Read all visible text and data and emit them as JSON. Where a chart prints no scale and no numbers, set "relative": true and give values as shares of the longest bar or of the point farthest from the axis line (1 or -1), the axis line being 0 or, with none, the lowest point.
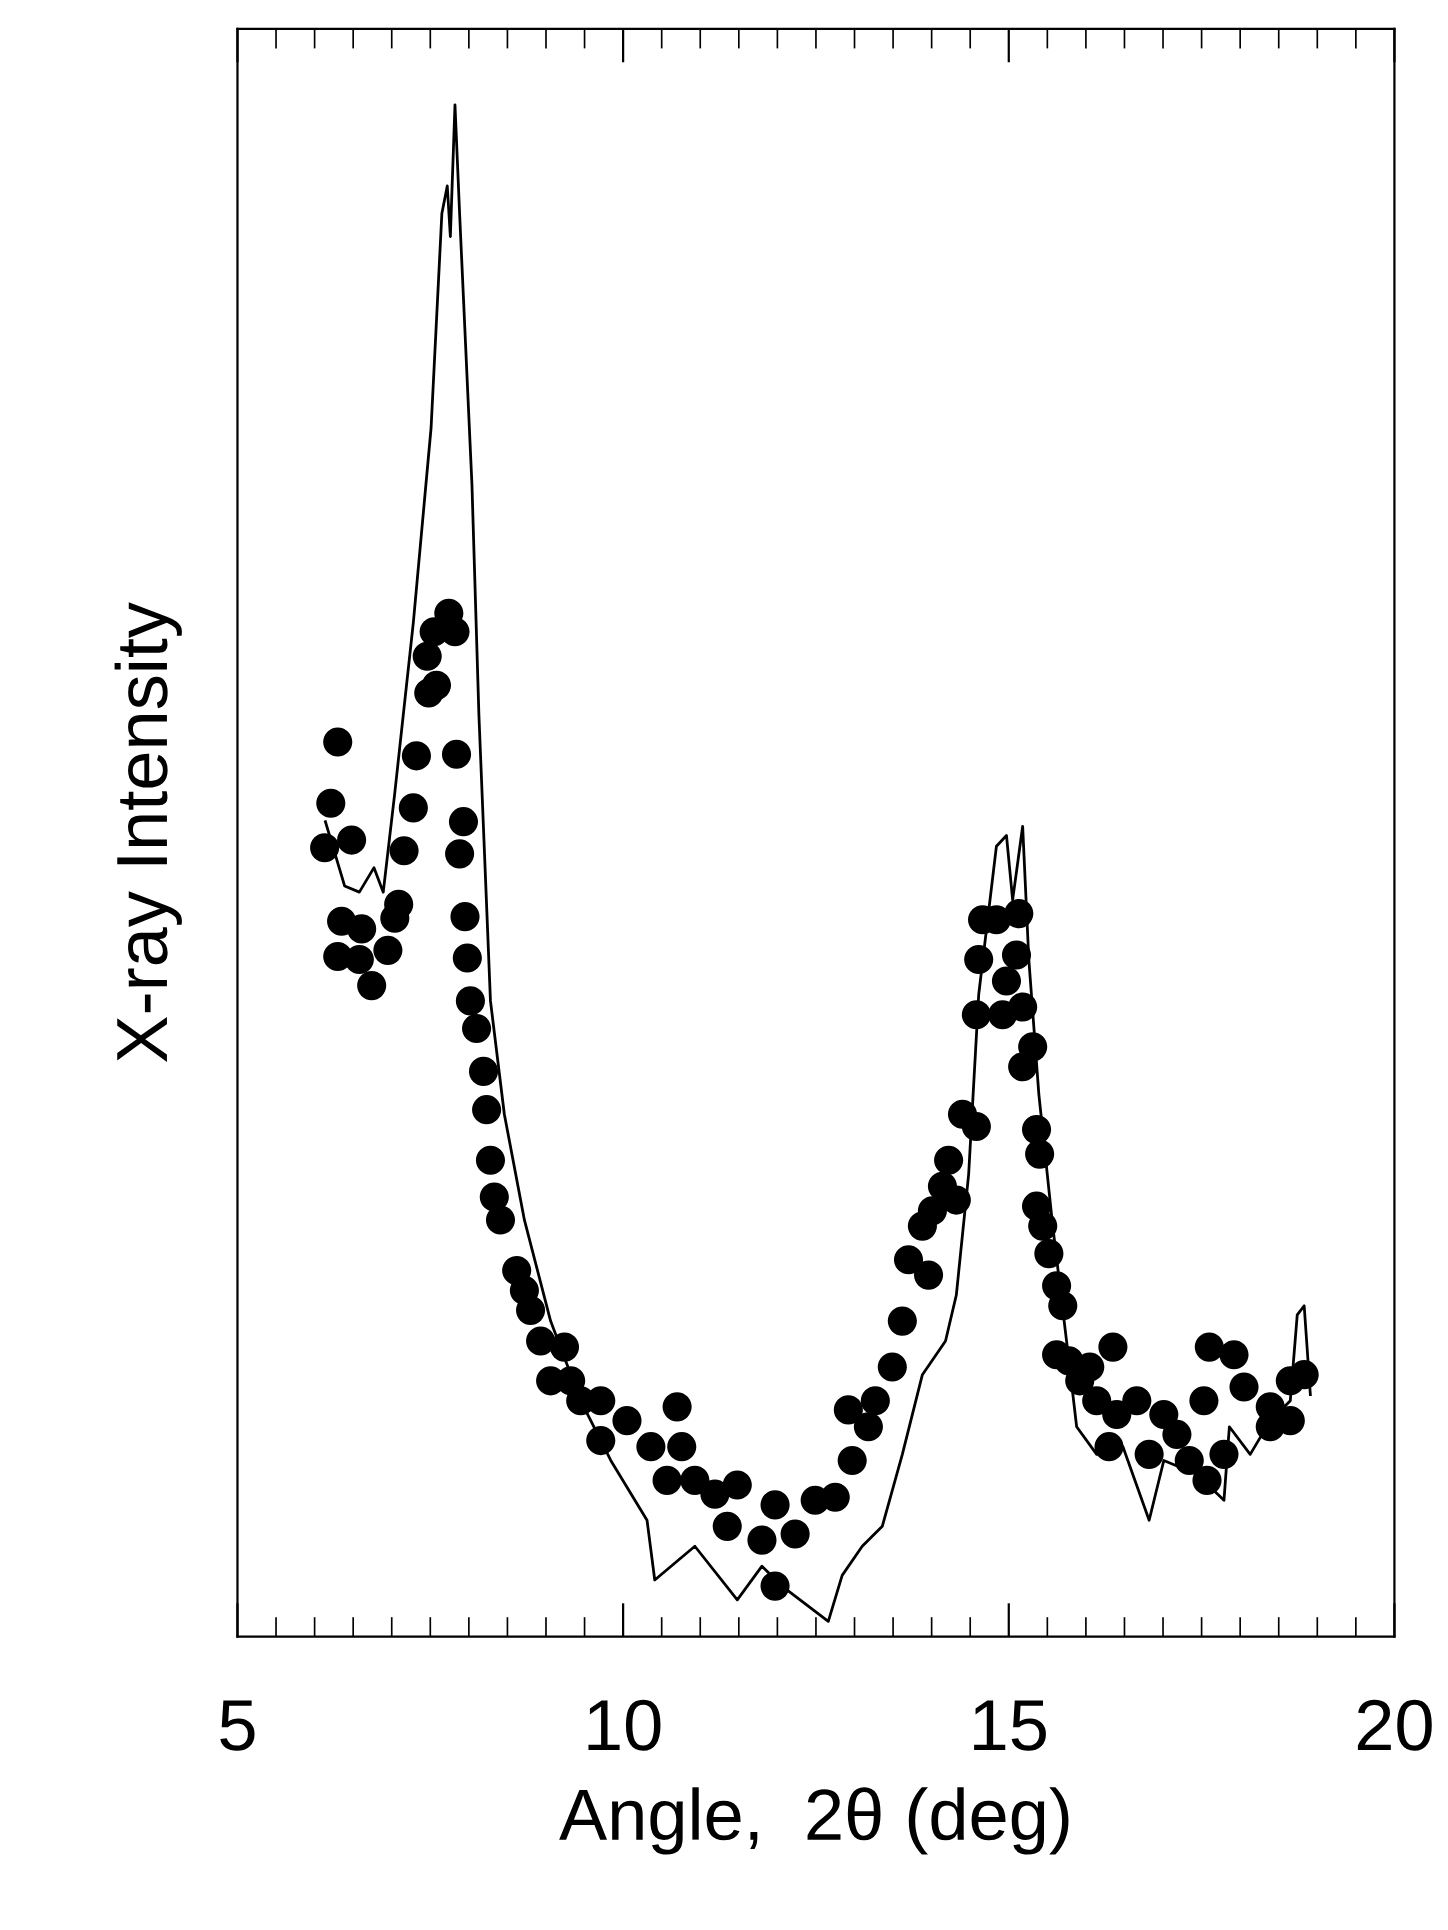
{
  "chart_data": {
    "type": "scatter",
    "xlabel": "Angle,  2θ (deg)",
    "ylabel": "X-ray Intensity",
    "relative": true,
    "xlim": [
      5,
      20
    ],
    "xticks": [
      5,
      {
        "value": 5.5,
        "label": null
      },
      {
        "value": 6,
        "label": null
      },
      {
        "value": 6.5,
        "label": null
      },
      {
        "value": 7,
        "label": null
      },
      {
        "value": 7.5,
        "label": null
      },
      {
        "value": 8,
        "label": null
      },
      {
        "value": 8.5,
        "label": null
      },
      {
        "value": 9,
        "label": null
      },
      {
        "value": 9.5,
        "label": null
      },
      10,
      {
        "value": 10.5,
        "label": null
      },
      {
        "value": 11,
        "label": null
      },
      {
        "value": 11.5,
        "label": null
      },
      {
        "value": 12,
        "label": null
      },
      {
        "value": 12.5,
        "label": null
      },
      {
        "value": 13,
        "label": null
      },
      {
        "value": 13.5,
        "label": null
      },
      {
        "value": 14,
        "label": null
      },
      {
        "value": 14.5,
        "label": null
      },
      15,
      {
        "value": 15.5,
        "label": null
      },
      {
        "value": 16,
        "label": null
      },
      {
        "value": 16.5,
        "label": null
      },
      {
        "value": 17,
        "label": null
      },
      {
        "value": 17.5,
        "label": null
      },
      {
        "value": 18,
        "label": null
      },
      {
        "value": 18.5,
        "label": null
      },
      {
        "value": 19,
        "label": null
      },
      {
        "value": 19.5,
        "label": null
      },
      20
    ],
    "grid": false,
    "legend": false,
    "tick_labels": "x",
    "series": [
      {
        "type": "line",
        "color": "#000000",
        "marker": "none",
        "line_style": "solid",
        "x": [
          6.14,
          6.39,
          6.58,
          6.77,
          6.89,
          7.04,
          7.28,
          7.51,
          7.65,
          7.72,
          7.76,
          7.82,
          7.88,
          8.04,
          8.13,
          8.28,
          8.46,
          8.72,
          9.06,
          9.45,
          9.84,
          10.31,
          10.41,
          10.93,
          11.48,
          11.8,
          12.06,
          12.66,
          12.84,
          13.1,
          13.36,
          13.62,
          13.88,
          14.18,
          14.32,
          14.48,
          14.61,
          14.84,
          14.97,
          15.05,
          15.18,
          15.26,
          15.39,
          15.57,
          15.78,
          15.88,
          16.14,
          16.48,
          16.82,
          17.01,
          17.44,
          17.79,
          17.86,
          18.13,
          18.39,
          18.65,
          18.74,
          18.83,
          18.91
        ],
        "values": [
          0.532,
          0.49,
          0.486,
          0.502,
          0.486,
          0.551,
          0.662,
          0.789,
          0.929,
          0.947,
          0.914,
          1.0,
          0.929,
          0.752,
          0.602,
          0.415,
          0.341,
          0.272,
          0.206,
          0.154,
          0.115,
          0.076,
          0.037,
          0.059,
          0.024,
          0.046,
          0.033,
          0.01,
          0.04,
          0.059,
          0.072,
          0.119,
          0.171,
          0.193,
          0.223,
          0.302,
          0.419,
          0.516,
          0.523,
          0.481,
          0.529,
          0.442,
          0.354,
          0.268,
          0.18,
          0.137,
          0.119,
          0.124,
          0.076,
          0.115,
          0.106,
          0.089,
          0.137,
          0.119,
          0.141,
          0.154,
          0.21,
          0.216,
          0.158
        ]
      },
      {
        "type": "scatter",
        "color": "#000000",
        "marker": "circle",
        "x": [
          6.3,
          6.21,
          6.13,
          6.48,
          6.35,
          6.61,
          6.3,
          6.58,
          6.74,
          6.95,
          7.04,
          7.09,
          7.16,
          7.28,
          7.32,
          7.48,
          7.58,
          7.46,
          7.55,
          7.74,
          7.82,
          7.84,
          7.93,
          7.88,
          7.95,
          7.98,
          8.02,
          8.1,
          8.19,
          8.23,
          8.28,
          8.33,
          8.41,
          8.62,
          8.72,
          8.8,
          8.93,
          9.06,
          9.24,
          9.32,
          9.45,
          9.71,
          10.05,
          9.71,
          10.36,
          10.7,
          10.76,
          10.57,
          10.93,
          11.48,
          11.19,
          11.97,
          12.49,
          12.75,
          11.35,
          11.8,
          11.97,
          12.23,
          12.92,
          12.97,
          13.18,
          13.27,
          13.49,
          13.62,
          13.7,
          13.96,
          13.88,
          14.01,
          14.14,
          14.32,
          14.22,
          14.4,
          14.58,
          14.58,
          14.61,
          14.66,
          14.84,
          14.97,
          14.92,
          15.13,
          15.1,
          15.18,
          15.31,
          15.18,
          15.36,
          15.4,
          15.36,
          15.44,
          15.52,
          15.62,
          15.7,
          15.62,
          15.78,
          15.92,
          16.05,
          16.35,
          16.14,
          16.4,
          16.66,
          17.01,
          16.3,
          16.82,
          17.18,
          17.34,
          17.57,
          17.79,
          17.6,
          17.92,
          17.53,
          18.05,
          18.39,
          18.65,
          18.83,
          18.39,
          18.65
        ],
        "values": [
          0.584,
          0.544,
          0.515,
          0.52,
          0.467,
          0.462,
          0.444,
          0.442,
          0.425,
          0.448,
          0.469,
          0.478,
          0.513,
          0.541,
          0.575,
          0.616,
          0.621,
          0.64,
          0.656,
          0.668,
          0.656,
          0.576,
          0.532,
          0.511,
          0.47,
          0.443,
          0.415,
          0.397,
          0.369,
          0.344,
          0.311,
          0.287,
          0.272,
          0.239,
          0.226,
          0.213,
          0.193,
          0.167,
          0.189,
          0.167,
          0.154,
          0.154,
          0.141,
          0.128,
          0.124,
          0.15,
          0.124,
          0.102,
          0.102,
          0.099,
          0.093,
          0.086,
          0.089,
          0.091,
          0.072,
          0.063,
          0.033,
          0.067,
          0.148,
          0.115,
          0.137,
          0.154,
          0.176,
          0.206,
          0.246,
          0.236,
          0.268,
          0.278,
          0.294,
          0.285,
          0.311,
          0.341,
          0.333,
          0.406,
          0.442,
          0.468,
          0.468,
          0.428,
          0.406,
          0.472,
          0.445,
          0.411,
          0.385,
          0.372,
          0.331,
          0.315,
          0.281,
          0.268,
          0.25,
          0.229,
          0.216,
          0.184,
          0.18,
          0.167,
          0.176,
          0.189,
          0.154,
          0.145,
          0.154,
          0.145,
          0.124,
          0.119,
          0.132,
          0.115,
          0.102,
          0.119,
          0.189,
          0.184,
          0.154,
          0.163,
          0.15,
          0.167,
          0.171,
          0.137,
          0.141
        ]
      }
    ]
  }
}
